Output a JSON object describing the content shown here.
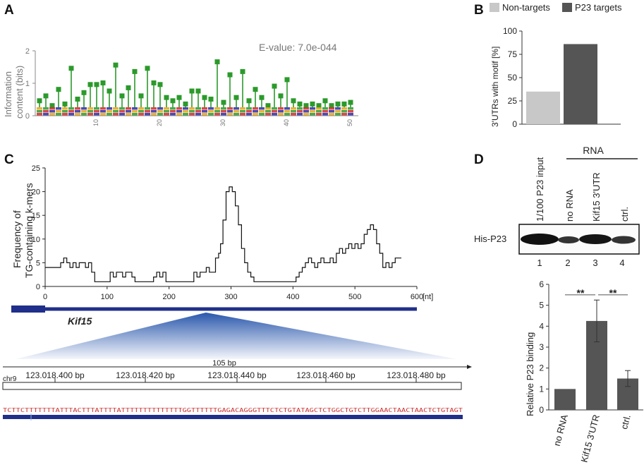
{
  "panels": {
    "a": "A",
    "b": "B",
    "c": "C",
    "d": "D"
  },
  "panel_a": {
    "evalue": "E-value: 7.0e-044",
    "ylabel_line1": "Information",
    "ylabel_line2": "content (bits)",
    "yticks": [
      "0",
      "1",
      "2"
    ],
    "xticks": [
      "10",
      "20",
      "30",
      "40",
      "50"
    ],
    "motif_heights": [
      0.45,
      0.6,
      0.3,
      0.8,
      0.35,
      1.45,
      0.5,
      0.7,
      0.95,
      0.95,
      1.0,
      0.75,
      1.55,
      0.6,
      0.85,
      1.35,
      0.6,
      1.45,
      1.0,
      0.95,
      0.55,
      0.45,
      0.55,
      0.35,
      0.75,
      0.75,
      0.55,
      0.5,
      1.65,
      0.4,
      1.25,
      0.55,
      1.35,
      0.45,
      0.8,
      0.55,
      0.3,
      0.9,
      0.6,
      1.1,
      0.45,
      0.35,
      0.3,
      0.35,
      0.3,
      0.45,
      0.3,
      0.35,
      0.35,
      0.4
    ]
  },
  "chart_data": [
    {
      "type": "bar",
      "panel": "B",
      "title": "",
      "legend": [
        "Non-targets",
        "P23 targets"
      ],
      "categories": [
        "Non-targets",
        "P23 targets"
      ],
      "values": [
        35,
        86
      ],
      "colors": [
        "#c8c8c8",
        "#555555"
      ],
      "ylabel": "3'UTRs with motif [%]",
      "ylim": [
        0,
        100
      ],
      "yticks": [
        "0",
        "25",
        "50",
        "75",
        "100"
      ]
    },
    {
      "type": "line",
      "panel": "C",
      "ylabel_line1": "Frequency of",
      "ylabel_line2": "TG-containing  k-mers",
      "xunit": "[nt]",
      "xlim": [
        0,
        600
      ],
      "ylim": [
        0,
        25
      ],
      "xticks": [
        "0",
        "100",
        "200",
        "300",
        "400",
        "500",
        "600"
      ],
      "yticks": [
        "0",
        "5",
        "10",
        "15",
        "20",
        "25"
      ],
      "x": [
        0,
        20,
        25,
        30,
        35,
        40,
        45,
        50,
        55,
        60,
        65,
        70,
        75,
        80,
        100,
        105,
        110,
        115,
        120,
        125,
        130,
        135,
        140,
        145,
        150,
        170,
        175,
        180,
        185,
        190,
        195,
        200,
        235,
        240,
        245,
        250,
        255,
        260,
        265,
        270,
        275,
        280,
        283,
        287,
        292,
        297,
        302,
        307,
        312,
        317,
        322,
        327,
        332,
        337,
        342,
        348,
        360,
        395,
        400,
        405,
        410,
        415,
        420,
        425,
        430,
        435,
        440,
        445,
        450,
        455,
        460,
        465,
        470,
        475,
        480,
        485,
        490,
        495,
        500,
        505,
        510,
        515,
        520,
        525,
        530,
        535,
        540,
        545,
        550,
        555,
        560,
        565,
        575
      ],
      "y": [
        4,
        4,
        5,
        6,
        5,
        4,
        5,
        4,
        5,
        5,
        4,
        5,
        3,
        1,
        1,
        3,
        2,
        3,
        3,
        2,
        3,
        3,
        2,
        1,
        1,
        1,
        2,
        3,
        2,
        3,
        1,
        1,
        1,
        3,
        2,
        3,
        3,
        4,
        3,
        3,
        6,
        7,
        9,
        14,
        20,
        21,
        20,
        17,
        13,
        8,
        5,
        3,
        2,
        1,
        1,
        1,
        1,
        1,
        1,
        2,
        3,
        4,
        5,
        6,
        5,
        4,
        5,
        6,
        5,
        5,
        6,
        5,
        7,
        8,
        7,
        8,
        9,
        8,
        9,
        8,
        9,
        11,
        12,
        13,
        12,
        9,
        7,
        4,
        5,
        4,
        5,
        6,
        6
      ]
    },
    {
      "type": "bar",
      "panel": "D",
      "categories": [
        "no RNA",
        "Kif15 3'UTR",
        "ctrl."
      ],
      "values": [
        1.0,
        4.25,
        1.5
      ],
      "errors": [
        0.02,
        1.0,
        0.38
      ],
      "ylabel": "Relative P23 binding",
      "ylim": [
        0,
        6
      ],
      "yticks": [
        "0",
        "1",
        "2",
        "3",
        "4",
        "5",
        "6"
      ],
      "significance": [
        "**",
        "**"
      ]
    }
  ],
  "panel_c_track": {
    "gene": "Kif15",
    "window": "105 bp",
    "chrom": "chr9",
    "coords": [
      "123.018.400 bp",
      "123.018.420 bp",
      "123.018.440 bp",
      "123.018.460 bp",
      "123.018.480 bp"
    ],
    "sequence": "TCTTCTTTTTTTATTTACTTTATTTTATTTTTTTTTTTTTTGGTTTTTTGAGACAGGGTTTCTCTGTATAGCTCTGGCTGTCTTGGAACTAACTAACTCTGTAGT"
  },
  "panel_d": {
    "rna_header": "RNA",
    "lanes": [
      "1/100 P23 input",
      "no RNA",
      "Kif15 3'UTR",
      "ctrl."
    ],
    "lane_numbers": [
      "1",
      "2",
      "3",
      "4"
    ],
    "blot_label": "His-P23"
  },
  "colors": {
    "motif_green": "#2b9a2b",
    "track_blue": "#1f2f8a",
    "bar_dark": "#555555",
    "bar_light": "#c8c8c8"
  }
}
